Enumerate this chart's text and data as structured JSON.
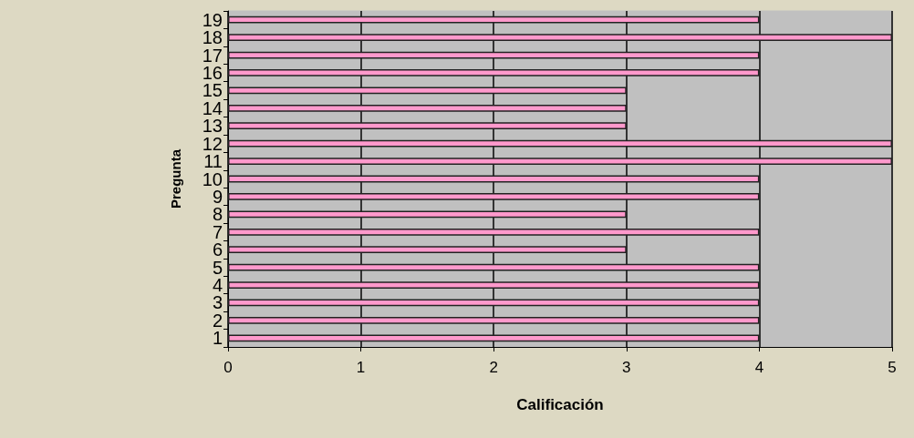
{
  "chart_data": {
    "type": "bar",
    "orientation": "horizontal",
    "xlabel": "Calificación",
    "ylabel": "Pregunta",
    "categories": [
      "19",
      "18",
      "17",
      "16",
      "15",
      "14",
      "13",
      "12",
      "11",
      "10",
      "9",
      "8",
      "7",
      "6",
      "5",
      "4",
      "3",
      "2",
      "1"
    ],
    "values": [
      4,
      5,
      4,
      4,
      3,
      3,
      3,
      5,
      5,
      4,
      4,
      3,
      4,
      3,
      4,
      4,
      4,
      4,
      4
    ],
    "color": "#ff99cc",
    "xlim": [
      0,
      5
    ],
    "xticks": [
      0,
      1,
      2,
      3,
      4,
      5
    ],
    "grid": "x"
  }
}
